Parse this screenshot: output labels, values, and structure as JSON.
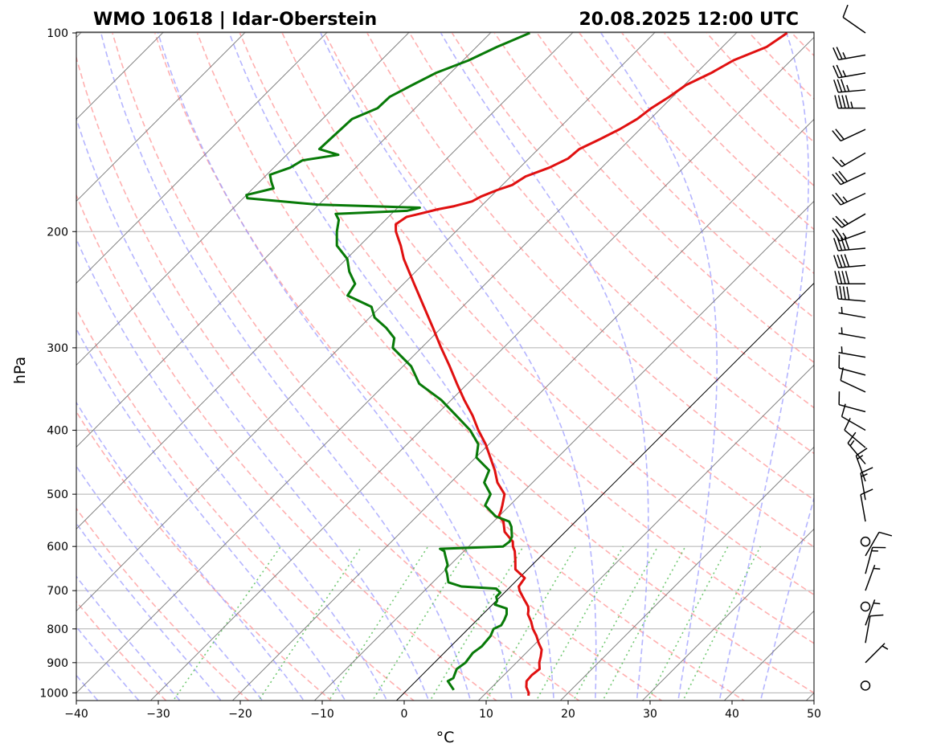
{
  "title_left": "WMO 10618 | Idar-Oberstein",
  "title_right": "20.08.2025 12:00 UTC",
  "chart_data": {
    "type": "line",
    "xlabel": "°C",
    "ylabel": "hPa",
    "xlim": [
      -40,
      50
    ],
    "ylim": [
      1020,
      100
    ],
    "y_scale": "log",
    "skew": true,
    "grid": true,
    "x_ticks": [
      "−40",
      "−30",
      "−20",
      "−10",
      "0",
      "10",
      "20",
      "30",
      "40",
      "50"
    ],
    "y_ticks": [
      "100",
      "200",
      "300",
      "400",
      "500",
      "600",
      "700",
      "800",
      "900",
      "1000"
    ],
    "y_tick_values": [
      100,
      200,
      300,
      400,
      500,
      600,
      700,
      800,
      900,
      1000
    ],
    "colors": {
      "temperature": "#e01010",
      "dewpoint": "#087a08",
      "dry_adiabats": "#ff9c9c",
      "moist_adiabats": "#9c9cff",
      "mixing_ratio": "#5cbf5c",
      "isotherms": "#808080",
      "zero_isotherm": "#000000",
      "isobars": "#b0b0b0"
    },
    "series": [
      {
        "key": "temperature",
        "points": [
          [
            1010,
            15.5
          ],
          [
            1000,
            15.2
          ],
          [
            980,
            14.2
          ],
          [
            960,
            13.5
          ],
          [
            940,
            13.4
          ],
          [
            920,
            13.6
          ],
          [
            900,
            12.8
          ],
          [
            880,
            12.2
          ],
          [
            860,
            11.5
          ],
          [
            840,
            10.3
          ],
          [
            820,
            9.2
          ],
          [
            800,
            7.9
          ],
          [
            780,
            6.8
          ],
          [
            760,
            5.5
          ],
          [
            750,
            5.1
          ],
          [
            740,
            4.6
          ],
          [
            720,
            3.1
          ],
          [
            700,
            1.6
          ],
          [
            690,
            1.0
          ],
          [
            670,
            0.7
          ],
          [
            650,
            -1.5
          ],
          [
            630,
            -2.6
          ],
          [
            610,
            -3.8
          ],
          [
            600,
            -4.6
          ],
          [
            590,
            -5.2
          ],
          [
            570,
            -7.4
          ],
          [
            550,
            -8.8
          ],
          [
            540,
            -10.0
          ],
          [
            530,
            -10.4
          ],
          [
            520,
            -10.9
          ],
          [
            500,
            -12.0
          ],
          [
            480,
            -14.3
          ],
          [
            460,
            -16.1
          ],
          [
            440,
            -18.2
          ],
          [
            420,
            -20.4
          ],
          [
            400,
            -23.0
          ],
          [
            380,
            -25.5
          ],
          [
            360,
            -28.4
          ],
          [
            340,
            -31.3
          ],
          [
            320,
            -34.3
          ],
          [
            300,
            -37.6
          ],
          [
            280,
            -41.0
          ],
          [
            260,
            -44.7
          ],
          [
            240,
            -48.7
          ],
          [
            220,
            -53.0
          ],
          [
            210,
            -55.0
          ],
          [
            200,
            -57.3
          ],
          [
            195,
            -58.2
          ],
          [
            190,
            -57.8
          ],
          [
            188,
            -56.6
          ],
          [
            185,
            -54.9
          ],
          [
            183,
            -53.3
          ],
          [
            180,
            -51.7
          ],
          [
            177,
            -51.2
          ],
          [
            173,
            -50.0
          ],
          [
            170,
            -48.8
          ],
          [
            165,
            -48.2
          ],
          [
            160,
            -46.4
          ],
          [
            155,
            -45.2
          ],
          [
            150,
            -45.0
          ],
          [
            145,
            -43.7
          ],
          [
            140,
            -42.5
          ],
          [
            135,
            -41.6
          ],
          [
            130,
            -41.2
          ],
          [
            125,
            -40.4
          ],
          [
            120,
            -39.8
          ],
          [
            115,
            -38.2
          ],
          [
            110,
            -37.0
          ],
          [
            105,
            -34.6
          ],
          [
            100,
            -33.8
          ]
        ]
      },
      {
        "key": "dewpoint",
        "points": [
          [
            990,
            5.7
          ],
          [
            960,
            3.9
          ],
          [
            950,
            4.2
          ],
          [
            920,
            3.5
          ],
          [
            900,
            3.8
          ],
          [
            870,
            3.5
          ],
          [
            850,
            3.8
          ],
          [
            820,
            3.6
          ],
          [
            800,
            3.1
          ],
          [
            790,
            3.6
          ],
          [
            775,
            3.3
          ],
          [
            760,
            2.9
          ],
          [
            745,
            2.2
          ],
          [
            735,
            0.3
          ],
          [
            725,
            0.1
          ],
          [
            715,
            -0.5
          ],
          [
            705,
            -0.5
          ],
          [
            695,
            -1.5
          ],
          [
            690,
            -6.0
          ],
          [
            680,
            -8.1
          ],
          [
            660,
            -9.3
          ],
          [
            650,
            -10.0
          ],
          [
            640,
            -10.3
          ],
          [
            620,
            -11.7
          ],
          [
            610,
            -12.4
          ],
          [
            605,
            -13.2
          ],
          [
            600,
            -5.8
          ],
          [
            590,
            -5.6
          ],
          [
            580,
            -5.9
          ],
          [
            560,
            -7.2
          ],
          [
            550,
            -8.1
          ],
          [
            540,
            -10.4
          ],
          [
            520,
            -13.0
          ],
          [
            500,
            -13.7
          ],
          [
            480,
            -15.9
          ],
          [
            460,
            -16.8
          ],
          [
            440,
            -19.9
          ],
          [
            420,
            -21.3
          ],
          [
            400,
            -24.0
          ],
          [
            380,
            -27.5
          ],
          [
            360,
            -31.2
          ],
          [
            340,
            -35.9
          ],
          [
            320,
            -39.0
          ],
          [
            300,
            -43.5
          ],
          [
            290,
            -44.5
          ],
          [
            280,
            -46.7
          ],
          [
            270,
            -49.4
          ],
          [
            260,
            -51.1
          ],
          [
            250,
            -55.4
          ],
          [
            240,
            -55.9
          ],
          [
            230,
            -58.1
          ],
          [
            220,
            -59.9
          ],
          [
            210,
            -62.8
          ],
          [
            200,
            -64.5
          ],
          [
            192,
            -65.7
          ],
          [
            188,
            -66.8
          ],
          [
            186,
            -58.5
          ],
          [
            184,
            -57.3
          ],
          [
            182,
            -70.2
          ],
          [
            178,
            -79.5
          ],
          [
            176,
            -80.0
          ],
          [
            172,
            -77.5
          ],
          [
            168,
            -78.6
          ],
          [
            164,
            -79.6
          ],
          [
            160,
            -78.0
          ],
          [
            156,
            -77.4
          ],
          [
            153,
            -73.7
          ],
          [
            150,
            -76.7
          ],
          [
            145,
            -76.6
          ],
          [
            140,
            -76.5
          ],
          [
            135,
            -76.4
          ],
          [
            130,
            -74.6
          ],
          [
            125,
            -74.5
          ],
          [
            120,
            -73.2
          ],
          [
            115,
            -71.8
          ],
          [
            110,
            -69.3
          ],
          [
            105,
            -67.5
          ],
          [
            100,
            -65.2
          ]
        ]
      }
    ],
    "wind_barbs": [
      {
        "p": 100,
        "dir": 305,
        "spd": 10
      },
      {
        "p": 108,
        "dir": 260,
        "spd": 25
      },
      {
        "p": 115,
        "dir": 260,
        "spd": 25
      },
      {
        "p": 122,
        "dir": 265,
        "spd": 35
      },
      {
        "p": 130,
        "dir": 270,
        "spd": 45
      },
      {
        "p": 140,
        "dir": 245,
        "spd": 20
      },
      {
        "p": 152,
        "dir": 240,
        "spd": 15
      },
      {
        "p": 163,
        "dir": 245,
        "spd": 30
      },
      {
        "p": 175,
        "dir": 245,
        "spd": 25
      },
      {
        "p": 188,
        "dir": 240,
        "spd": 25
      },
      {
        "p": 200,
        "dir": 250,
        "spd": 25
      },
      {
        "p": 212,
        "dir": 265,
        "spd": 40
      },
      {
        "p": 225,
        "dir": 265,
        "spd": 40
      },
      {
        "p": 240,
        "dir": 270,
        "spd": 40
      },
      {
        "p": 255,
        "dir": 275,
        "spd": 40
      },
      {
        "p": 270,
        "dir": 280,
        "spd": 5
      },
      {
        "p": 290,
        "dir": 280,
        "spd": 5
      },
      {
        "p": 310,
        "dir": 280,
        "spd": 5
      },
      {
        "p": 330,
        "dir": 285,
        "spd": 10
      },
      {
        "p": 350,
        "dir": 295,
        "spd": 10
      },
      {
        "p": 375,
        "dir": 285,
        "spd": 10
      },
      {
        "p": 400,
        "dir": 300,
        "spd": 10
      },
      {
        "p": 425,
        "dir": 310,
        "spd": 10
      },
      {
        "p": 450,
        "dir": 320,
        "spd": 15
      },
      {
        "p": 478,
        "dir": 340,
        "spd": 15
      },
      {
        "p": 510,
        "dir": 350,
        "spd": 15
      },
      {
        "p": 550,
        "dir": 350,
        "spd": 10
      },
      {
        "p": 590,
        "dir": 0,
        "spd": 0
      },
      {
        "p": 620,
        "dir": 30,
        "spd": 10
      },
      {
        "p": 660,
        "dir": 15,
        "spd": 15
      },
      {
        "p": 700,
        "dir": 20,
        "spd": 5
      },
      {
        "p": 740,
        "dir": 0,
        "spd": 0
      },
      {
        "p": 790,
        "dir": 20,
        "spd": 5
      },
      {
        "p": 840,
        "dir": 10,
        "spd": 10
      },
      {
        "p": 900,
        "dir": 45,
        "spd": 5
      },
      {
        "p": 975,
        "dir": 0,
        "spd": 0
      }
    ]
  }
}
